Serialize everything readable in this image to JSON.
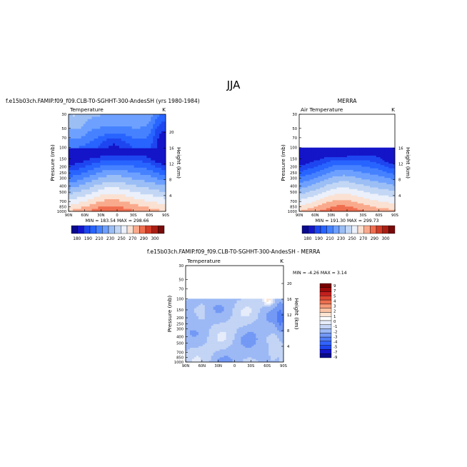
{
  "figure": {
    "title": "JJA"
  },
  "levels": {
    "full": [
      180,
      190,
      200,
      210,
      220,
      230,
      240,
      250,
      260,
      270,
      280,
      290,
      300
    ],
    "full_labels": [
      180,
      190,
      210,
      230,
      250,
      270,
      290,
      300
    ],
    "full_colors": [
      "#0a0a8c",
      "#1414c8",
      "#1e46f0",
      "#2864ff",
      "#4682ff",
      "#6ea0ff",
      "#9bbef5",
      "#c3d7f5",
      "#ebf0fa",
      "#fae1d2",
      "#faaa8c",
      "#f06e50",
      "#d23c28",
      "#aa1e14",
      "#780a0a"
    ],
    "diff": [
      -9,
      -7,
      -5,
      -4,
      -3,
      -2,
      -1,
      0,
      1,
      2,
      3,
      4,
      5,
      7,
      9
    ],
    "diff_colors": [
      "#0a0a8c",
      "#1414c8",
      "#1e46f0",
      "#3264ff",
      "#507df5",
      "#7399f5",
      "#9cb9f5",
      "#c3d4f5",
      "#e6ecfa",
      "#ffffff",
      "#fbe4d2",
      "#fac2a4",
      "#f59a78",
      "#ec7050",
      "#dc4632",
      "#c31e1e",
      "#9b0a0a",
      "#780000"
    ]
  },
  "chart_data": [
    {
      "type": "heatmap",
      "title": "f.e15b03ch.FAMIP.f09_f09.CLB-T0-SGHHT-300-AndesSH (yrs 1980-1984)",
      "subtitle_left": "Temperature",
      "subtitle_right": "K",
      "xlabel": "",
      "ylabel": "Pressure (mb)",
      "ylabel_right": "Height (km)",
      "x_ticks": [
        "90N",
        "60N",
        "30N",
        "0",
        "30S",
        "60S",
        "90S"
      ],
      "y_ticks": [
        30,
        50,
        70,
        100,
        150,
        200,
        250,
        300,
        400,
        500,
        700,
        850,
        1000
      ],
      "height_ticks": [
        20,
        16,
        12,
        8,
        4
      ],
      "xlim": [
        90,
        -90
      ],
      "ylim": [
        1000,
        30
      ],
      "top_level": 30,
      "variant": "model",
      "min_max": "MIN = 183.54    MAX = 298.66",
      "cbar_labels": [
        180,
        190,
        210,
        230,
        250,
        270,
        290,
        300
      ]
    },
    {
      "type": "heatmap",
      "title": "MERRA",
      "subtitle_left": "Air Temperature",
      "subtitle_right": "K",
      "xlabel": "",
      "ylabel": "Pressure (mb)",
      "ylabel_right": "Height (km)",
      "x_ticks": [
        "90N",
        "60N",
        "30N",
        "0",
        "30S",
        "60S",
        "90S"
      ],
      "y_ticks": [
        30,
        50,
        70,
        100,
        150,
        200,
        250,
        300,
        400,
        500,
        700,
        850,
        1000
      ],
      "height_ticks": [
        16,
        12,
        8,
        4
      ],
      "xlim": [
        90,
        -90
      ],
      "ylim": [
        1000,
        30
      ],
      "top_level": 100,
      "variant": "obs",
      "min_max": "MIN = 191.30    MAX = 299.73",
      "cbar_labels": [
        180,
        190,
        210,
        230,
        250,
        270,
        290,
        300
      ]
    },
    {
      "type": "heatmap",
      "title": "f.e15b03ch.FAMIP.f09_f09.CLB-T0-SGHHT-300-AndesSH  -  MERRA",
      "subtitle_left": "Temperature",
      "subtitle_right": "K",
      "xlabel": "",
      "ylabel": "Pressure (mb)",
      "ylabel_right": "Height (km)",
      "x_ticks": [
        "90N",
        "60N",
        "30N",
        "0",
        "30S",
        "60S",
        "90S"
      ],
      "y_ticks": [
        30,
        50,
        70,
        100,
        150,
        200,
        250,
        300,
        400,
        500,
        700,
        850,
        1000
      ],
      "height_ticks": [
        20,
        16,
        12,
        8,
        4
      ],
      "xlim": [
        90,
        -90
      ],
      "ylim": [
        1000,
        30
      ],
      "top_level": 100,
      "variant": "diff",
      "min_max": "MIN =   -4.26    MAX =    3.14",
      "cbar_labels": [
        9,
        7,
        5,
        4,
        3,
        2,
        1,
        0,
        -1,
        -2,
        -3,
        -4,
        -5,
        -7,
        -9
      ]
    }
  ]
}
